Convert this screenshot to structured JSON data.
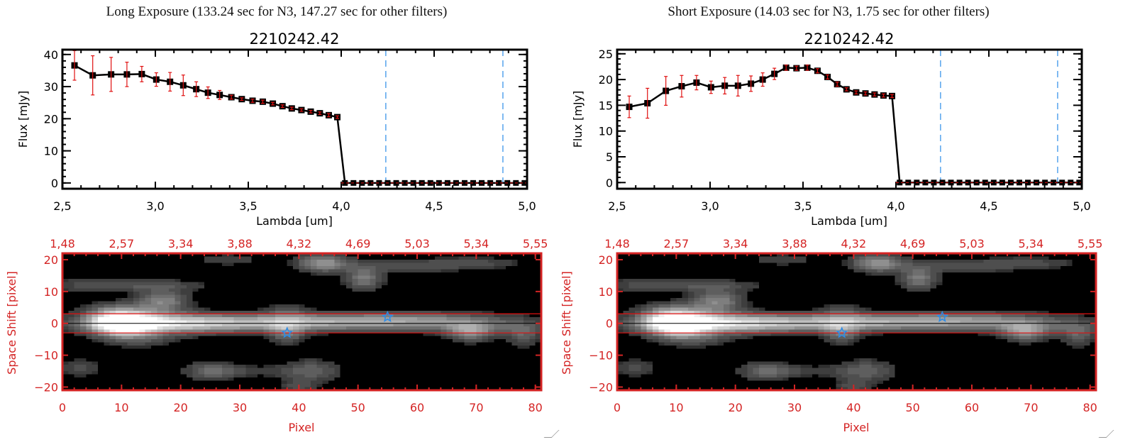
{
  "chart_data": [
    {
      "type": "line",
      "panel_title": "Long Exposure (133.24 sec for N3, 147.27 sec for other filters)",
      "title": "2210242.42",
      "xlabel": "Lambda [um]",
      "ylabel": "Flux [mJy]",
      "xlim": [
        2.5,
        5.0
      ],
      "ylim": [
        -1.8,
        41.5
      ],
      "xticks": [
        "2.5",
        "3.0",
        "3.5",
        "4.0",
        "4.5",
        "5.0"
      ],
      "yticks": [
        "0",
        "10",
        "20",
        "30",
        "40"
      ],
      "x": [
        2.565,
        2.663,
        2.762,
        2.847,
        2.927,
        3.005,
        3.079,
        3.15,
        3.22,
        3.283,
        3.346,
        3.409,
        3.465,
        3.523,
        3.578,
        3.632,
        3.684,
        3.734,
        3.786,
        3.836,
        3.885,
        3.933,
        3.979
      ],
      "y": [
        36.6,
        33.5,
        33.8,
        33.8,
        33.9,
        32.2,
        31.5,
        30.4,
        29.2,
        28.1,
        27.4,
        26.7,
        26.1,
        25.6,
        25.3,
        24.7,
        23.9,
        23.2,
        22.7,
        22.2,
        21.7,
        21.1,
        20.5
      ],
      "yerr": [
        4.6,
        6.1,
        5.3,
        3.8,
        2.4,
        2.1,
        2.9,
        3.2,
        2.3,
        1.8,
        1.4,
        0.6,
        0.4,
        0.5,
        0.5,
        0.4,
        0.4,
        0.4,
        0.4,
        0.4,
        0.4,
        0.5,
        0.4
      ],
      "zero_x": [
        4.02,
        4.066,
        4.112,
        4.158,
        4.204,
        4.25,
        4.296,
        4.342,
        4.388,
        4.434,
        4.48,
        4.526,
        4.572,
        4.618,
        4.664,
        4.71,
        4.756,
        4.802,
        4.848,
        4.894,
        4.94,
        4.986
      ],
      "vlines": [
        4.24,
        4.87
      ],
      "colors": {
        "line": "#000000",
        "error": "#e01010",
        "vline": "#2b8ce8",
        "zero_line": "#e01010"
      }
    },
    {
      "type": "line",
      "panel_title": "Short Exposure (14.03 sec for N3, 1.75 sec for other filters)",
      "title": "2210242.42",
      "xlabel": "Lambda [um]",
      "ylabel": "Flux [mJy]",
      "xlim": [
        2.5,
        5.0
      ],
      "ylim": [
        -1.2,
        25.8
      ],
      "xticks": [
        "2.5",
        "3.0",
        "3.5",
        "4.0",
        "4.5",
        "5.0"
      ],
      "yticks": [
        "0",
        "5",
        "10",
        "15",
        "20",
        "25"
      ],
      "x": [
        2.565,
        2.663,
        2.762,
        2.847,
        2.927,
        3.005,
        3.079,
        3.15,
        3.22,
        3.283,
        3.346,
        3.409,
        3.465,
        3.523,
        3.578,
        3.632,
        3.684,
        3.734,
        3.786,
        3.836,
        3.885,
        3.933,
        3.979
      ],
      "y": [
        14.7,
        15.4,
        17.8,
        18.7,
        19.4,
        18.5,
        18.8,
        18.8,
        19.2,
        20.0,
        21.1,
        22.3,
        22.2,
        22.3,
        21.7,
        20.5,
        19.1,
        18.1,
        17.5,
        17.3,
        17.1,
        16.9,
        16.8
      ],
      "yerr": [
        2.1,
        2.9,
        2.8,
        2.1,
        1.4,
        1.2,
        1.6,
        2.0,
        1.5,
        1.3,
        1.1,
        0.5,
        0.4,
        0.5,
        0.4,
        0.4,
        0.4,
        0.3,
        0.3,
        0.3,
        0.3,
        0.3,
        0.3
      ],
      "zero_x": [
        4.02,
        4.066,
        4.112,
        4.158,
        4.204,
        4.25,
        4.296,
        4.342,
        4.388,
        4.434,
        4.48,
        4.526,
        4.572,
        4.618,
        4.664,
        4.71,
        4.756,
        4.802,
        4.848,
        4.894,
        4.94,
        4.986
      ],
      "vlines": [
        4.24,
        4.87
      ],
      "colors": {
        "line": "#000000",
        "error": "#e01010",
        "vline": "#2b8ce8",
        "zero_line": "#e01010"
      }
    },
    {
      "type": "heatmap",
      "xlabel": "Pixel",
      "ylabel": "Space Shift [pixel]",
      "xlim": [
        0,
        81
      ],
      "ylim": [
        -21,
        22
      ],
      "xticks": [
        "0",
        "10",
        "20",
        "30",
        "40",
        "50",
        "60",
        "70",
        "80"
      ],
      "top_xticks": [
        "1.48",
        "2.57",
        "3.34",
        "3.88",
        "4.32",
        "4.69",
        "5.03",
        "5.34",
        "5.55"
      ],
      "yticks": [
        "-20",
        "-10",
        "0",
        "10",
        "20"
      ],
      "aperture_lines": [
        3,
        -3
      ],
      "center_line": 0,
      "stars": [
        {
          "x": 38,
          "y": -3
        },
        {
          "x": 55,
          "y": 2
        }
      ],
      "colors": {
        "axis": "#d42424",
        "aperture": "#e01010",
        "star": "#2b8ce8",
        "colormap": "grayscale"
      }
    },
    {
      "type": "heatmap",
      "xlabel": "Pixel",
      "ylabel": "Space Shift [pixel]",
      "xlim": [
        0,
        81
      ],
      "ylim": [
        -21,
        22
      ],
      "xticks": [
        "0",
        "10",
        "20",
        "30",
        "40",
        "50",
        "60",
        "70",
        "80"
      ],
      "top_xticks": [
        "1.48",
        "2.57",
        "3.34",
        "3.88",
        "4.32",
        "4.69",
        "5.03",
        "5.34",
        "5.55"
      ],
      "yticks": [
        "-20",
        "-10",
        "0",
        "10",
        "20"
      ],
      "aperture_lines": [
        3,
        -3
      ],
      "center_line": 0,
      "stars": [
        {
          "x": 38,
          "y": -3
        },
        {
          "x": 55,
          "y": 2
        }
      ],
      "colors": {
        "axis": "#d42424",
        "aperture": "#e01010",
        "star": "#2b8ce8",
        "colormap": "grayscale"
      }
    }
  ]
}
